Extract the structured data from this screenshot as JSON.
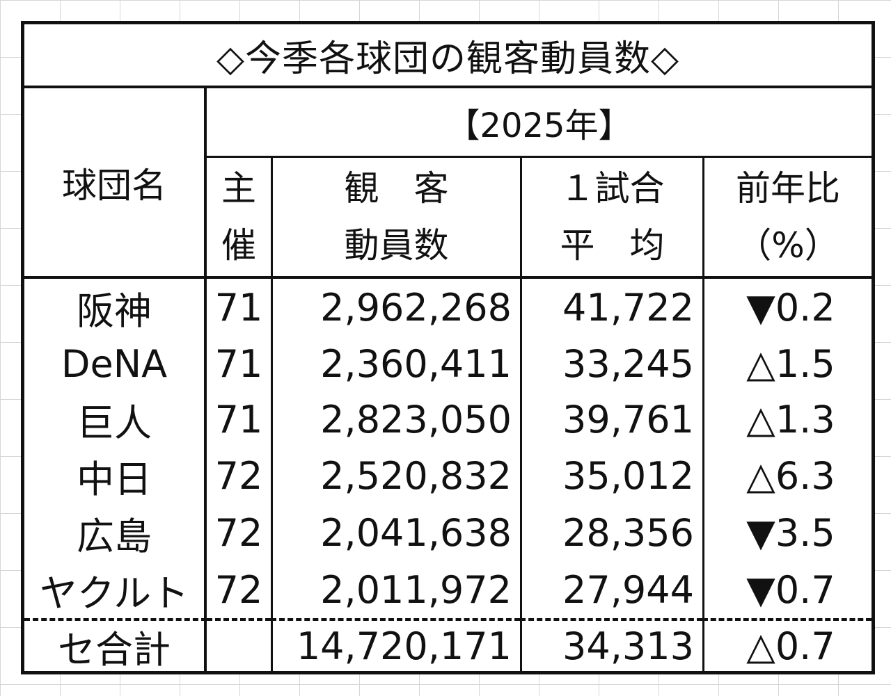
{
  "title": "◇今季各球団の観客動員数◇",
  "header": {
    "team": "球団名",
    "year": "【2025年】",
    "games": [
      "主",
      "催"
    ],
    "attendance": [
      "観　客",
      "動員数"
    ],
    "average": [
      "１試合",
      "平　均"
    ],
    "yoy": [
      "前年比",
      "（%）"
    ]
  },
  "rows": [
    {
      "team": "阪神",
      "games": "71",
      "attendance": "2,962,268",
      "average": "41,722",
      "yoy": "▼0.2"
    },
    {
      "team": "DeNA",
      "games": "71",
      "attendance": "2,360,411",
      "average": "33,245",
      "yoy": "△1.5"
    },
    {
      "team": "巨人",
      "games": "71",
      "attendance": "2,823,050",
      "average": "39,761",
      "yoy": "△1.3"
    },
    {
      "team": "中日",
      "games": "72",
      "attendance": "2,520,832",
      "average": "35,012",
      "yoy": "△6.3"
    },
    {
      "team": "広島",
      "games": "72",
      "attendance": "2,041,638",
      "average": "28,356",
      "yoy": "▼3.5"
    },
    {
      "team": "ヤクルト",
      "games": "72",
      "attendance": "2,011,972",
      "average": "27,944",
      "yoy": "▼0.7"
    }
  ],
  "total": {
    "team": "セ合計",
    "games": "",
    "attendance": "14,720,171",
    "average": "34,313",
    "yoy": "△0.7"
  }
}
